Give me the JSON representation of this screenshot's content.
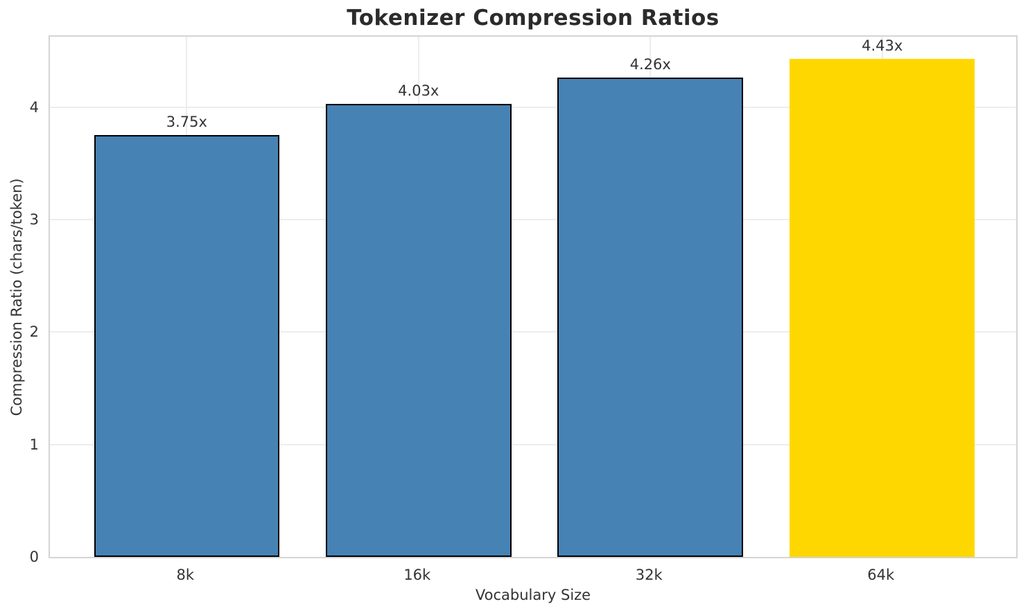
{
  "chart_data": {
    "type": "bar",
    "title": "Tokenizer Compression Ratios",
    "xlabel": "Vocabulary Size",
    "ylabel": "Compression Ratio (chars/token)",
    "categories": [
      "8k",
      "16k",
      "32k",
      "64k"
    ],
    "values": [
      3.75,
      4.03,
      4.26,
      4.43
    ],
    "bar_labels": [
      "3.75x",
      "4.03x",
      "4.26x",
      "4.43x"
    ],
    "bar_colors": [
      "#4682b4",
      "#4682b4",
      "#4682b4",
      "#ffd700"
    ],
    "bar_edge_colors": [
      "#000000",
      "#000000",
      "#000000",
      "none"
    ],
    "highlight_index": 3,
    "yticks": [
      0,
      1,
      2,
      3,
      4
    ],
    "ytick_labels": [
      "0",
      "1",
      "2",
      "3",
      "4"
    ],
    "ylim": [
      0,
      4.65
    ],
    "grid": true,
    "legend": "none",
    "colors": {
      "bar_default": "#4682b4",
      "bar_highlight": "#ffd700",
      "bar_edge": "#000000",
      "grid": "#ededed",
      "spine": "#d4d4d4",
      "text": "#333333",
      "title_text": "#2b2b2b"
    }
  }
}
